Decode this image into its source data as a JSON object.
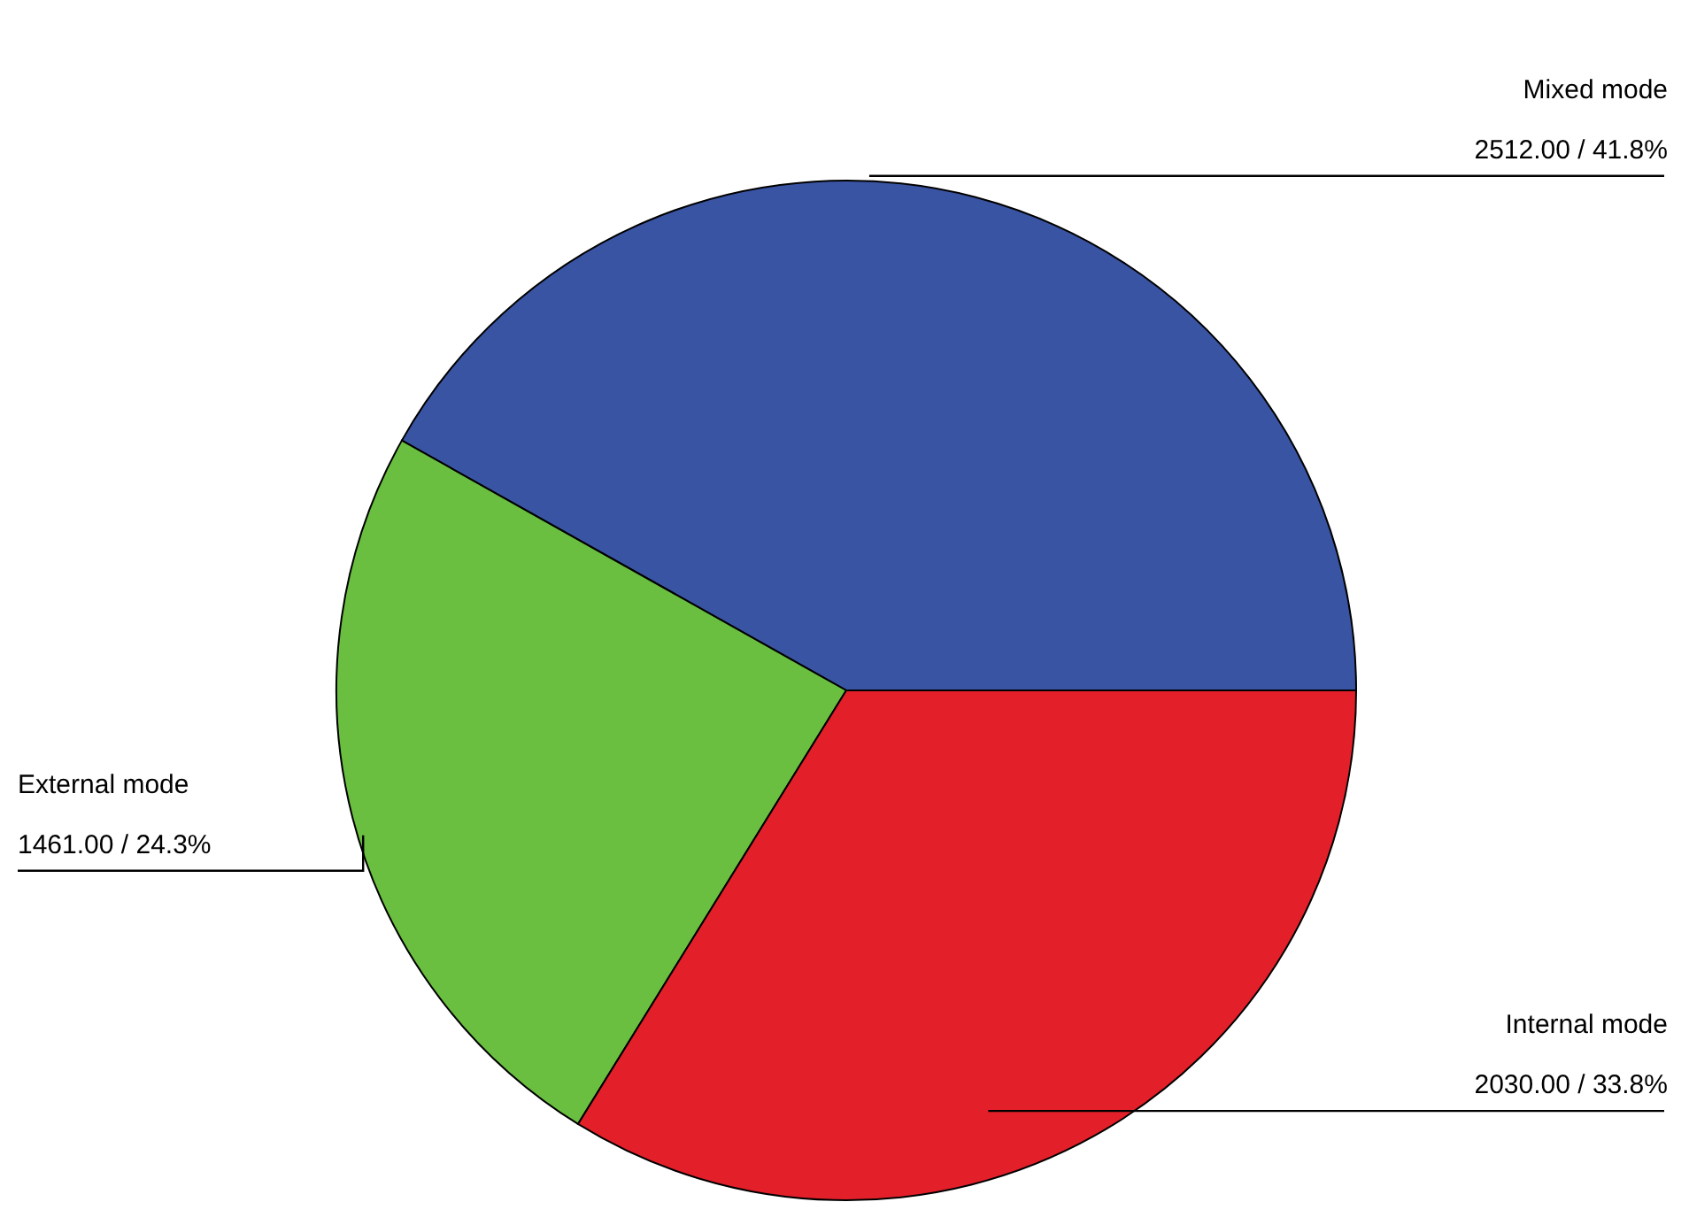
{
  "chart_data": {
    "type": "pie",
    "categories": [
      "Mixed mode",
      "External mode",
      "Internal mode"
    ],
    "values": [
      2512,
      1461,
      2030
    ],
    "colors": [
      "#3a54a4",
      "#6abf40",
      "#e3202a"
    ],
    "value_labels": [
      "2512.00 / 41.8%",
      "1461.00 / 24.3%",
      "2030.00 / 33.8%"
    ],
    "legend": false
  }
}
